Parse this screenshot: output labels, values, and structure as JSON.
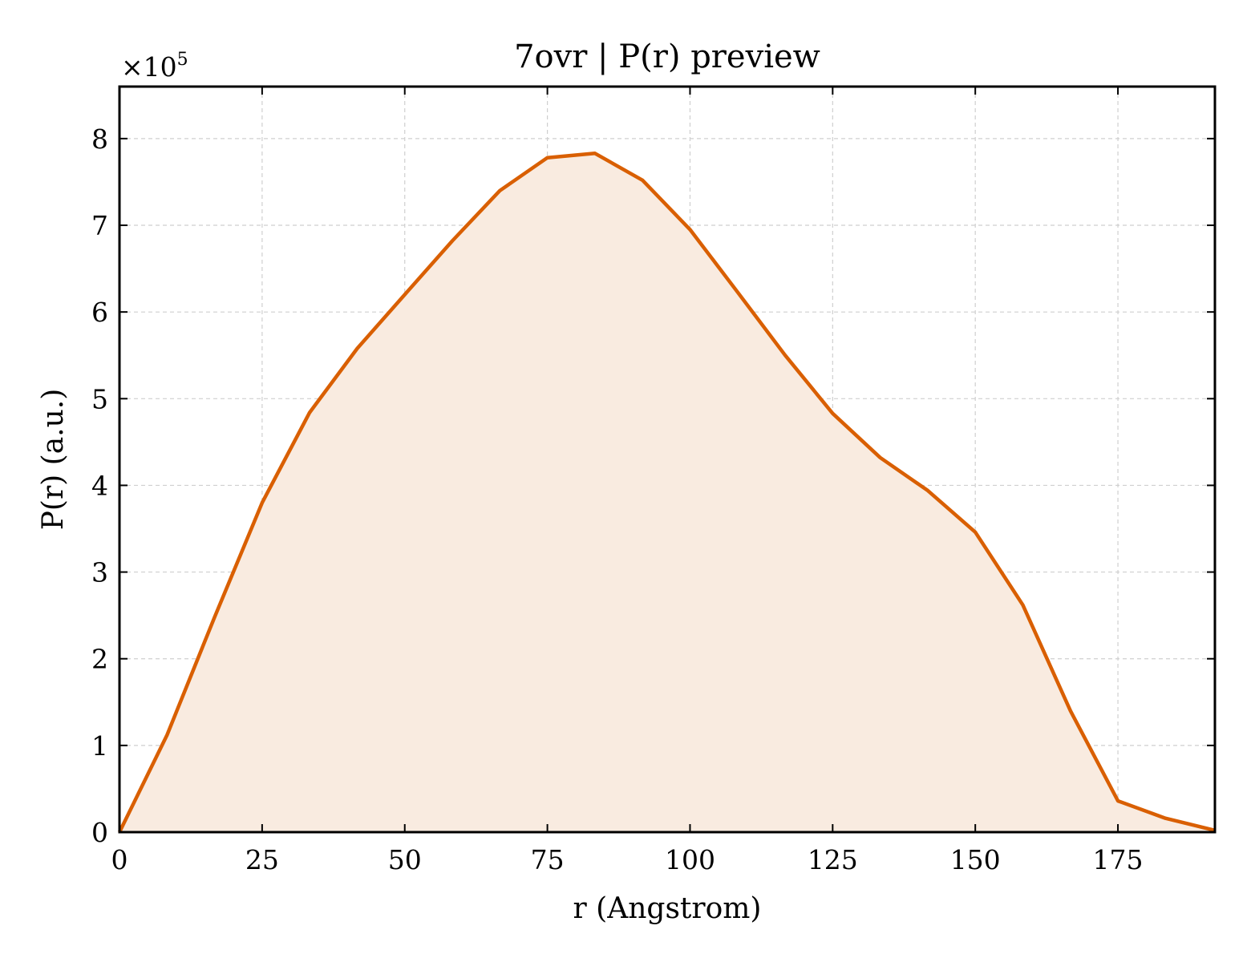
{
  "chart_data": {
    "type": "area",
    "title": "7ovr | P(r) preview",
    "xlabel": "r (Angstrom)",
    "ylabel": "P(r) (a.u.)",
    "y_multiplier": "×10",
    "y_multiplier_exp": "5",
    "xlim": [
      0,
      192
    ],
    "ylim": [
      0,
      8.6
    ],
    "x_ticks": [
      0,
      25,
      50,
      75,
      100,
      125,
      150,
      175
    ],
    "y_ticks": [
      0,
      1,
      2,
      3,
      4,
      5,
      6,
      7,
      8
    ],
    "grid": true,
    "line_color": "#d95f02",
    "fill_color": "#f9ebe0",
    "series": [
      {
        "x": [
          0,
          8.33,
          16.67,
          25,
          33.33,
          41.67,
          50,
          58.33,
          66.67,
          75,
          83.33,
          91.67,
          100,
          108.33,
          116.67,
          125,
          133.33,
          141.67,
          150,
          158.33,
          166.67,
          175,
          183.33,
          192
        ],
        "y": [
          0,
          1.12,
          2.48,
          3.8,
          4.84,
          5.58,
          6.2,
          6.82,
          7.4,
          7.78,
          7.83,
          7.52,
          6.95,
          6.23,
          5.5,
          4.83,
          4.32,
          3.94,
          3.46,
          2.62,
          1.4,
          0.36,
          0.16,
          0.02
        ]
      }
    ]
  }
}
